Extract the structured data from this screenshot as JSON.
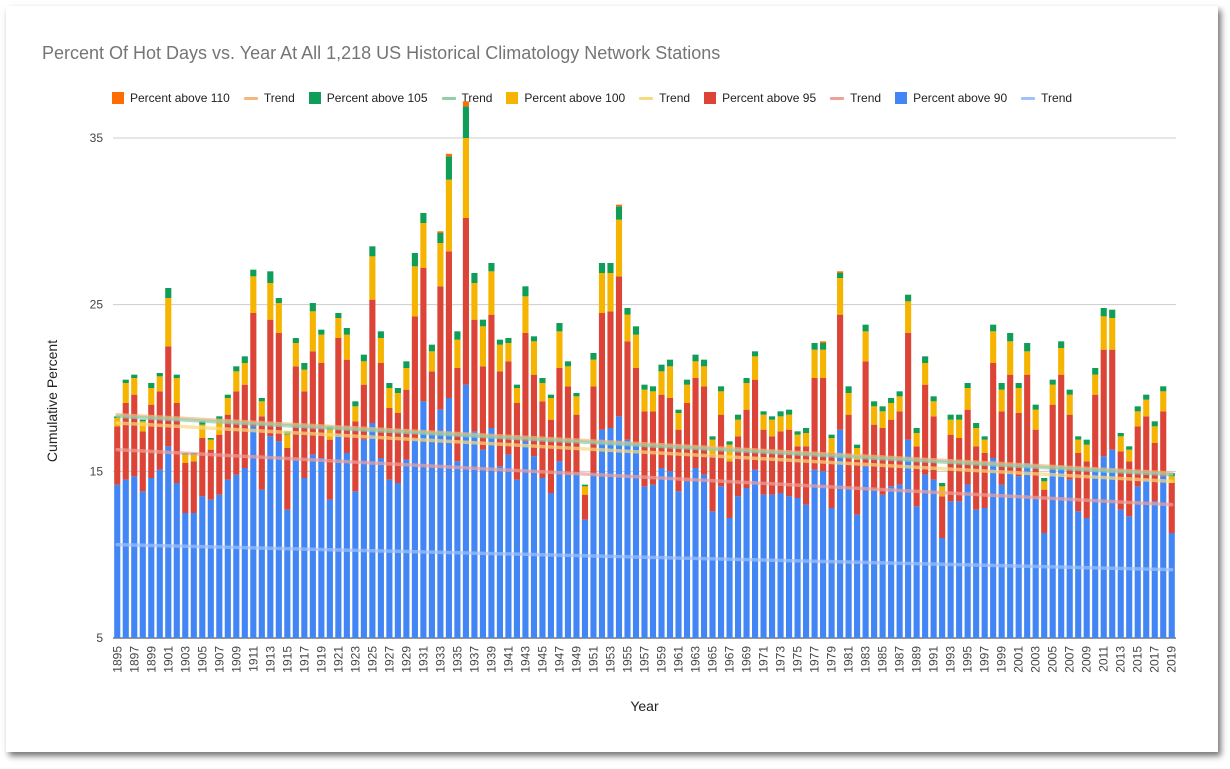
{
  "chart_data": {
    "type": "bar",
    "stacked": true,
    "title": "Percent Of Hot Days vs. Year At All 1,218 US Historical Climatology Network Stations",
    "xlabel": "Year",
    "ylabel": "Cumulative Percent",
    "ylim": [
      5,
      35
    ],
    "yticks": [
      5,
      15,
      25,
      35
    ],
    "grid": true,
    "legend_position": "top",
    "legend": [
      {
        "label": "Percent above 110",
        "kind": "bar",
        "color": "#ff6d01"
      },
      {
        "label": "Trend",
        "kind": "line",
        "color": "#f6b77f"
      },
      {
        "label": "Percent above 105",
        "kind": "bar",
        "color": "#0f9d58"
      },
      {
        "label": "Trend",
        "kind": "line",
        "color": "#8fcfac"
      },
      {
        "label": "Percent above 100",
        "kind": "bar",
        "color": "#f4b400"
      },
      {
        "label": "Trend",
        "kind": "line",
        "color": "#f9da80"
      },
      {
        "label": "Percent above 95",
        "kind": "bar",
        "color": "#db4437"
      },
      {
        "label": "Trend",
        "kind": "line",
        "color": "#eda19b"
      },
      {
        "label": "Percent above 90",
        "kind": "bar",
        "color": "#4285f4"
      },
      {
        "label": "Trend",
        "kind": "line",
        "color": "#a0c2f9"
      }
    ],
    "x": [
      1895,
      1896,
      1897,
      1898,
      1899,
      1900,
      1901,
      1902,
      1903,
      1904,
      1905,
      1906,
      1907,
      1908,
      1909,
      1910,
      1911,
      1912,
      1913,
      1914,
      1915,
      1916,
      1917,
      1918,
      1919,
      1920,
      1921,
      1922,
      1923,
      1924,
      1925,
      1926,
      1927,
      1928,
      1929,
      1930,
      1931,
      1932,
      1933,
      1934,
      1935,
      1936,
      1937,
      1938,
      1939,
      1940,
      1941,
      1942,
      1943,
      1944,
      1945,
      1946,
      1947,
      1948,
      1949,
      1950,
      1951,
      1952,
      1953,
      1954,
      1955,
      1956,
      1957,
      1958,
      1959,
      1960,
      1961,
      1962,
      1963,
      1964,
      1965,
      1966,
      1967,
      1968,
      1969,
      1970,
      1971,
      1972,
      1973,
      1974,
      1975,
      1976,
      1977,
      1978,
      1979,
      1980,
      1981,
      1982,
      1983,
      1984,
      1985,
      1986,
      1987,
      1988,
      1989,
      1990,
      1991,
      1992,
      1993,
      1994,
      1995,
      1996,
      1997,
      1998,
      1999,
      2000,
      2001,
      2002,
      2003,
      2004,
      2005,
      2006,
      2007,
      2008,
      2009,
      2010,
      2011,
      2012,
      2013,
      2014,
      2015,
      2016,
      2017,
      2018,
      2019
    ],
    "series": [
      {
        "name": "Percent above 90",
        "color": "#4285f4",
        "values": [
          9.2,
          9.5,
          9.7,
          8.8,
          9.6,
          10.1,
          11.5,
          9.3,
          7.5,
          7.5,
          8.5,
          8.3,
          8.6,
          9.5,
          9.8,
          10.2,
          12.7,
          8.9,
          12.1,
          11.8,
          7.7,
          10.7,
          9.6,
          11.0,
          10.8,
          8.3,
          12.2,
          11.1,
          8.8,
          11.9,
          12.9,
          10.8,
          9.5,
          9.3,
          10.7,
          11.9,
          14.2,
          12.2,
          13.7,
          14.4,
          10.6,
          15.2,
          12.4,
          11.3,
          12.6,
          10.3,
          11.0,
          9.5,
          11.8,
          10.9,
          9.6,
          8.7,
          10.6,
          9.8,
          9.9,
          7.1,
          9.9,
          12.5,
          12.6,
          13.3,
          11.9,
          11.6,
          9.1,
          9.2,
          10.2,
          10.0,
          8.8,
          9.4,
          10.2,
          9.8,
          7.6,
          9.1,
          7.2,
          8.5,
          9.0,
          10.1,
          8.6,
          8.6,
          8.7,
          8.5,
          8.4,
          8.0,
          10.1,
          10.0,
          7.8,
          12.5,
          9.0,
          7.4,
          10.3,
          8.9,
          8.6,
          9.1,
          9.2,
          11.9,
          7.9,
          9.8,
          9.5,
          6.0,
          8.2,
          8.2,
          9.2,
          7.7,
          7.8,
          10.8,
          9.2,
          9.9,
          9.7,
          10.5,
          8.4,
          6.3,
          10.1,
          10.3,
          9.5,
          7.6,
          7.2,
          10.2,
          10.9,
          11.3,
          7.7,
          7.3,
          9.1,
          9.5,
          8.2,
          9.7,
          6.3
        ]
      },
      {
        "name": "Percent above 95",
        "color": "#db4437",
        "values": [
          3.5,
          4.6,
          4.9,
          3.6,
          4.4,
          4.7,
          6.0,
          4.8,
          3.0,
          3.1,
          3.5,
          3.0,
          3.6,
          3.9,
          5.0,
          5.0,
          6.8,
          4.4,
          7.0,
          6.5,
          3.7,
          5.6,
          5.2,
          6.2,
          5.7,
          3.6,
          5.8,
          5.6,
          4.2,
          3.3,
          7.4,
          5.7,
          4.3,
          4.2,
          4.2,
          7.4,
          8.0,
          3.8,
          7.4,
          8.8,
          5.6,
          10.0,
          6.7,
          5.0,
          6.8,
          5.7,
          5.6,
          4.6,
          6.5,
          4.9,
          4.6,
          4.4,
          5.6,
          5.3,
          3.5,
          1.5,
          5.2,
          7.0,
          7.0,
          8.4,
          5.9,
          4.6,
          4.5,
          4.4,
          4.4,
          4.4,
          3.7,
          4.7,
          5.4,
          5.3,
          3.4,
          4.3,
          3.4,
          3.6,
          4.7,
          5.4,
          3.9,
          3.5,
          3.7,
          4.0,
          3.1,
          3.5,
          5.5,
          5.6,
          3.3,
          6.9,
          4.4,
          3.3,
          6.3,
          3.9,
          4.0,
          4.0,
          4.4,
          6.4,
          3.6,
          5.4,
          3.8,
          2.5,
          4.0,
          3.8,
          4.5,
          3.8,
          3.3,
          5.7,
          4.4,
          5.9,
          3.8,
          5.3,
          4.1,
          2.6,
          3.9,
          5.5,
          3.9,
          3.5,
          3.4,
          4.4,
          6.4,
          6.0,
          3.5,
          3.3,
          3.6,
          3.8,
          3.5,
          3.9,
          3.0
        ]
      },
      {
        "name": "Percent above 100",
        "color": "#f4b400",
        "values": [
          0.5,
          1.2,
          1.0,
          0.6,
          1.0,
          0.9,
          2.9,
          1.5,
          0.5,
          0.4,
          0.8,
          0.6,
          0.9,
          1.0,
          1.2,
          1.3,
          2.2,
          0.9,
          2.2,
          1.8,
          0.8,
          1.4,
          1.3,
          2.4,
          1.7,
          0.6,
          1.2,
          1.5,
          0.9,
          1.4,
          2.6,
          1.5,
          1.2,
          1.2,
          1.3,
          3.0,
          2.7,
          1.2,
          2.6,
          4.3,
          1.7,
          4.8,
          2.2,
          2.4,
          2.6,
          1.6,
          1.1,
          0.9,
          2.2,
          2.0,
          1.1,
          1.3,
          2.2,
          1.2,
          1.1,
          0.5,
          1.6,
          2.4,
          2.3,
          3.4,
          1.6,
          2.0,
          1.3,
          1.2,
          1.4,
          1.9,
          1.0,
          1.1,
          1.0,
          1.2,
          0.9,
          1.4,
          1.0,
          1.0,
          1.6,
          1.4,
          0.9,
          1.0,
          0.9,
          0.9,
          0.7,
          0.8,
          1.7,
          1.7,
          0.9,
          2.2,
          1.3,
          0.7,
          1.8,
          1.1,
          1.0,
          1.0,
          0.9,
          1.9,
          0.8,
          1.3,
          0.9,
          0.6,
          0.9,
          1.1,
          1.3,
          1.1,
          0.8,
          1.9,
          1.3,
          2.0,
          1.5,
          1.4,
          1.2,
          0.5,
          1.2,
          1.6,
          1.2,
          0.8,
          1.0,
          1.2,
          2.0,
          1.9,
          0.9,
          0.7,
          0.9,
          1.0,
          1.0,
          1.2,
          0.4
        ]
      },
      {
        "name": "Percent above 105",
        "color": "#0f9d58",
        "values": [
          0.1,
          0.2,
          0.2,
          0.1,
          0.3,
          0.2,
          0.6,
          0.2,
          0.1,
          0.1,
          0.2,
          0.1,
          0.2,
          0.2,
          0.3,
          0.4,
          0.4,
          0.2,
          0.7,
          0.3,
          0.2,
          0.3,
          0.4,
          0.5,
          0.3,
          0.2,
          0.3,
          0.4,
          0.3,
          0.4,
          0.6,
          0.4,
          0.3,
          0.3,
          0.4,
          0.8,
          0.6,
          0.4,
          0.6,
          1.4,
          0.5,
          1.9,
          0.6,
          0.4,
          0.5,
          0.3,
          0.3,
          0.2,
          0.6,
          0.3,
          0.3,
          0.2,
          0.5,
          0.3,
          0.2,
          0.1,
          0.4,
          0.6,
          0.6,
          0.8,
          0.4,
          0.5,
          0.3,
          0.3,
          0.4,
          0.4,
          0.2,
          0.3,
          0.4,
          0.4,
          0.2,
          0.3,
          0.2,
          0.3,
          0.3,
          0.3,
          0.2,
          0.2,
          0.3,
          0.3,
          0.2,
          0.3,
          0.4,
          0.4,
          0.2,
          0.3,
          0.4,
          0.2,
          0.4,
          0.3,
          0.3,
          0.3,
          0.3,
          0.4,
          0.3,
          0.4,
          0.3,
          0.2,
          0.3,
          0.3,
          0.3,
          0.3,
          0.2,
          0.4,
          0.4,
          0.5,
          0.3,
          0.5,
          0.3,
          0.2,
          0.3,
          0.4,
          0.3,
          0.2,
          0.3,
          0.4,
          0.5,
          0.5,
          0.2,
          0.2,
          0.3,
          0.3,
          0.3,
          0.3,
          0.2
        ]
      },
      {
        "name": "Percent above 110",
        "color": "#ff6d01",
        "values": [
          0,
          0,
          0,
          0,
          0,
          0,
          0,
          0,
          0,
          0,
          0,
          0,
          0,
          0,
          0,
          0,
          0,
          0,
          0,
          0,
          0,
          0,
          0,
          0,
          0,
          0,
          0,
          0,
          0,
          0,
          0,
          0,
          0,
          0,
          0,
          0,
          0,
          0,
          0.1,
          0.15,
          0,
          0.3,
          0,
          0,
          0,
          0,
          0,
          0,
          0,
          0,
          0,
          0,
          0,
          0,
          0,
          0,
          0,
          0,
          0,
          0.1,
          0,
          0,
          0,
          0,
          0,
          0,
          0,
          0,
          0,
          0,
          0,
          0,
          0,
          0,
          0,
          0,
          0,
          0,
          0,
          0,
          0,
          0,
          0,
          0.1,
          0,
          0.1,
          0,
          0,
          0,
          0,
          0,
          0,
          0,
          0,
          0,
          0,
          0,
          0,
          0,
          0,
          0,
          0,
          0,
          0,
          0,
          0,
          0,
          0,
          0,
          0,
          0,
          0,
          0,
          0,
          0,
          0,
          0,
          0,
          0,
          0,
          0,
          0,
          0,
          0,
          0
        ]
      }
    ],
    "trends": [
      {
        "series": "Percent above 110",
        "color": "#f6b77f",
        "y_start": 18.4,
        "y_end": 14.9
      },
      {
        "series": "Percent above 105",
        "color": "#8fcfac",
        "y_start": 18.3,
        "y_end": 14.8
      },
      {
        "series": "Percent above 100",
        "color": "#f9da80",
        "y_start": 17.9,
        "y_end": 14.4
      },
      {
        "series": "Percent above 95",
        "color": "#eda19b",
        "y_start": 16.3,
        "y_end": 13.0
      },
      {
        "series": "Percent above 90",
        "color": "#a0c2f9",
        "y_start": 10.6,
        "y_end": 9.1
      }
    ]
  }
}
